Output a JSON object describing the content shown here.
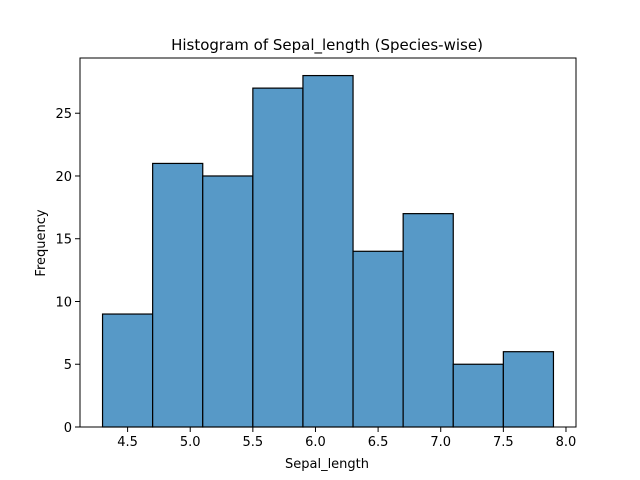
{
  "chart_data": {
    "type": "bar",
    "title": "Histogram of Sepal_length (Species-wise)",
    "xlabel": "Sepal_length",
    "ylabel": "Frequency",
    "bins": [
      {
        "x0": 4.3,
        "x1": 4.7,
        "count": 9
      },
      {
        "x0": 4.7,
        "x1": 5.1,
        "count": 21
      },
      {
        "x0": 5.1,
        "x1": 5.5,
        "count": 20
      },
      {
        "x0": 5.5,
        "x1": 5.9,
        "count": 27
      },
      {
        "x0": 5.9,
        "x1": 6.3,
        "count": 28
      },
      {
        "x0": 6.3,
        "x1": 6.7,
        "count": 14
      },
      {
        "x0": 6.7,
        "x1": 7.1,
        "count": 17
      },
      {
        "x0": 7.1,
        "x1": 7.5,
        "count": 5
      },
      {
        "x0": 7.5,
        "x1": 7.9,
        "count": 6
      }
    ],
    "xticks": [
      4.5,
      5.0,
      5.5,
      6.0,
      6.5,
      7.0,
      7.5,
      8.0
    ],
    "xtick_labels": [
      "4.5",
      "5.0",
      "5.5",
      "6.0",
      "6.5",
      "7.0",
      "7.5",
      "8.0"
    ],
    "yticks": [
      0,
      5,
      10,
      15,
      20,
      25
    ],
    "ytick_labels": [
      "0",
      "5",
      "10",
      "15",
      "20",
      "25"
    ],
    "xlim": [
      4.12,
      8.08
    ],
    "ylim": [
      0,
      29.4
    ],
    "grid": false,
    "bar_color": "#5799c7",
    "edge_color": "#000000"
  }
}
